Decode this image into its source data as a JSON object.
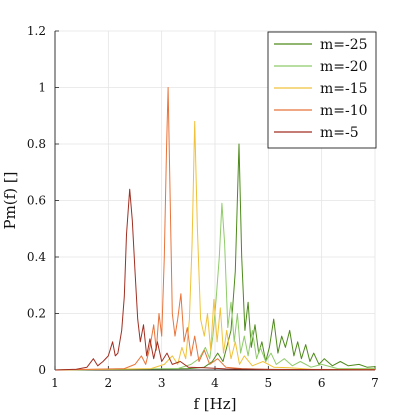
{
  "chart_data": {
    "type": "line",
    "xlabel": "f  [Hz]",
    "ylabel": "Pm(f) []",
    "xlim": [
      1,
      7
    ],
    "ylim": [
      0,
      1.2
    ],
    "xticks": [
      1,
      2,
      3,
      4,
      5,
      6,
      7
    ],
    "yticks": [
      0,
      0.2,
      0.4,
      0.6,
      0.8,
      1,
      1.2
    ],
    "ytick_labels": [
      "0",
      "0.2",
      "0.4",
      "0.6",
      "0.8",
      "1",
      "1.2"
    ],
    "grid": true,
    "legend_position": "top-right",
    "series": [
      {
        "name": "m=-25",
        "color": "#4d8a1a",
        "points": [
          [
            1.0,
            0.0
          ],
          [
            3.5,
            0.005
          ],
          [
            3.8,
            0.01
          ],
          [
            3.95,
            0.03
          ],
          [
            4.05,
            0.06
          ],
          [
            4.15,
            0.03
          ],
          [
            4.22,
            0.08
          ],
          [
            4.3,
            0.14
          ],
          [
            4.38,
            0.35
          ],
          [
            4.45,
            0.8
          ],
          [
            4.5,
            0.4
          ],
          [
            4.56,
            0.14
          ],
          [
            4.62,
            0.24
          ],
          [
            4.68,
            0.08
          ],
          [
            4.75,
            0.16
          ],
          [
            4.82,
            0.06
          ],
          [
            4.88,
            0.1
          ],
          [
            4.95,
            0.03
          ],
          [
            5.02,
            0.08
          ],
          [
            5.1,
            0.18
          ],
          [
            5.18,
            0.06
          ],
          [
            5.25,
            0.12
          ],
          [
            5.32,
            0.08
          ],
          [
            5.4,
            0.14
          ],
          [
            5.48,
            0.05
          ],
          [
            5.55,
            0.1
          ],
          [
            5.62,
            0.04
          ],
          [
            5.7,
            0.09
          ],
          [
            5.78,
            0.03
          ],
          [
            5.85,
            0.06
          ],
          [
            5.95,
            0.02
          ],
          [
            6.05,
            0.04
          ],
          [
            6.2,
            0.015
          ],
          [
            6.35,
            0.03
          ],
          [
            6.5,
            0.015
          ],
          [
            6.7,
            0.02
          ],
          [
            6.85,
            0.01
          ],
          [
            7.0,
            0.012
          ]
        ]
      },
      {
        "name": "m=-20",
        "color": "#8fcb6a",
        "points": [
          [
            1.0,
            0.0
          ],
          [
            3.3,
            0.005
          ],
          [
            3.55,
            0.02
          ],
          [
            3.7,
            0.04
          ],
          [
            3.82,
            0.08
          ],
          [
            3.9,
            0.04
          ],
          [
            3.96,
            0.12
          ],
          [
            4.02,
            0.25
          ],
          [
            4.08,
            0.4
          ],
          [
            4.13,
            0.59
          ],
          [
            4.18,
            0.45
          ],
          [
            4.24,
            0.15
          ],
          [
            4.3,
            0.24
          ],
          [
            4.36,
            0.1
          ],
          [
            4.42,
            0.2
          ],
          [
            4.48,
            0.06
          ],
          [
            4.55,
            0.12
          ],
          [
            4.62,
            0.05
          ],
          [
            4.7,
            0.14
          ],
          [
            4.78,
            0.04
          ],
          [
            4.85,
            0.08
          ],
          [
            4.95,
            0.03
          ],
          [
            5.05,
            0.06
          ],
          [
            5.15,
            0.02
          ],
          [
            5.3,
            0.04
          ],
          [
            5.45,
            0.015
          ],
          [
            5.6,
            0.03
          ],
          [
            5.8,
            0.01
          ],
          [
            6.0,
            0.02
          ],
          [
            6.3,
            0.005
          ],
          [
            7.0,
            0.005
          ]
        ]
      },
      {
        "name": "m=-15",
        "color": "#f0c23a",
        "points": [
          [
            1.0,
            0.0
          ],
          [
            2.8,
            0.005
          ],
          [
            3.05,
            0.02
          ],
          [
            3.2,
            0.05
          ],
          [
            3.3,
            0.02
          ],
          [
            3.38,
            0.08
          ],
          [
            3.45,
            0.04
          ],
          [
            3.52,
            0.18
          ],
          [
            3.57,
            0.45
          ],
          [
            3.62,
            0.88
          ],
          [
            3.67,
            0.5
          ],
          [
            3.73,
            0.18
          ],
          [
            3.8,
            0.12
          ],
          [
            3.86,
            0.2
          ],
          [
            3.92,
            0.07
          ],
          [
            3.98,
            0.25
          ],
          [
            4.04,
            0.1
          ],
          [
            4.1,
            0.22
          ],
          [
            4.16,
            0.06
          ],
          [
            4.22,
            0.14
          ],
          [
            4.3,
            0.04
          ],
          [
            4.38,
            0.1
          ],
          [
            4.46,
            0.02
          ],
          [
            4.55,
            0.05
          ],
          [
            4.7,
            0.015
          ],
          [
            4.9,
            0.03
          ],
          [
            5.1,
            0.01
          ],
          [
            5.4,
            0.008
          ],
          [
            5.8,
            0.003
          ],
          [
            7.0,
            0.002
          ]
        ]
      },
      {
        "name": "m=-10",
        "color": "#e8743a",
        "points": [
          [
            1.0,
            0.0
          ],
          [
            2.3,
            0.005
          ],
          [
            2.5,
            0.02
          ],
          [
            2.62,
            0.05
          ],
          [
            2.7,
            0.02
          ],
          [
            2.78,
            0.08
          ],
          [
            2.85,
            0.16
          ],
          [
            2.9,
            0.07
          ],
          [
            2.95,
            0.2
          ],
          [
            3.0,
            0.12
          ],
          [
            3.05,
            0.4
          ],
          [
            3.09,
            0.78
          ],
          [
            3.12,
            1.0
          ],
          [
            3.16,
            0.6
          ],
          [
            3.2,
            0.2
          ],
          [
            3.25,
            0.12
          ],
          [
            3.3,
            0.18
          ],
          [
            3.36,
            0.27
          ],
          [
            3.42,
            0.1
          ],
          [
            3.48,
            0.15
          ],
          [
            3.55,
            0.05
          ],
          [
            3.62,
            0.12
          ],
          [
            3.7,
            0.03
          ],
          [
            3.8,
            0.07
          ],
          [
            3.9,
            0.02
          ],
          [
            4.05,
            0.04
          ],
          [
            4.2,
            0.01
          ],
          [
            4.5,
            0.005
          ],
          [
            5.0,
            0.002
          ],
          [
            7.0,
            0.001
          ]
        ]
      },
      {
        "name": "m=-5",
        "color": "#a02f22",
        "points": [
          [
            1.0,
            0.0
          ],
          [
            1.4,
            0.003
          ],
          [
            1.6,
            0.01
          ],
          [
            1.72,
            0.04
          ],
          [
            1.8,
            0.015
          ],
          [
            1.9,
            0.03
          ],
          [
            2.0,
            0.05
          ],
          [
            2.08,
            0.1
          ],
          [
            2.13,
            0.05
          ],
          [
            2.18,
            0.06
          ],
          [
            2.25,
            0.14
          ],
          [
            2.3,
            0.26
          ],
          [
            2.34,
            0.48
          ],
          [
            2.4,
            0.64
          ],
          [
            2.45,
            0.53
          ],
          [
            2.5,
            0.35
          ],
          [
            2.55,
            0.18
          ],
          [
            2.6,
            0.1
          ],
          [
            2.66,
            0.16
          ],
          [
            2.72,
            0.05
          ],
          [
            2.78,
            0.11
          ],
          [
            2.85,
            0.04
          ],
          [
            2.92,
            0.1
          ],
          [
            3.0,
            0.03
          ],
          [
            3.1,
            0.06
          ],
          [
            3.2,
            0.02
          ],
          [
            3.35,
            0.03
          ],
          [
            3.5,
            0.01
          ],
          [
            3.8,
            0.008
          ],
          [
            4.2,
            0.004
          ],
          [
            5.0,
            0.002
          ],
          [
            7.0,
            0.001
          ]
        ]
      }
    ]
  }
}
